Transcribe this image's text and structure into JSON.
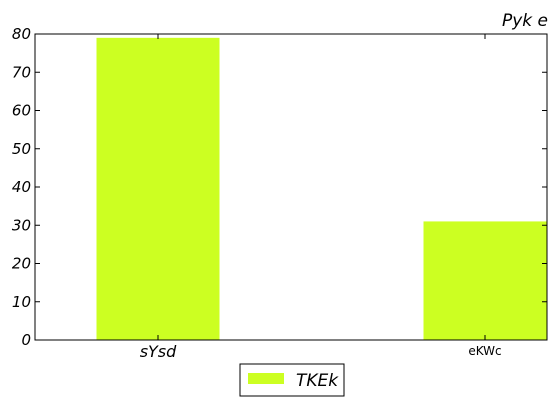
{
  "chart_data": {
    "type": "bar",
    "title": "Pyk  e",
    "xlabel": "",
    "ylabel": "",
    "categories": [
      "sYsd",
      "eKWc"
    ],
    "series": [
      {
        "name": "TKEk",
        "values": [
          79,
          31
        ],
        "color": "#ccff22"
      }
    ],
    "ylim": [
      0,
      80
    ],
    "yticks": [
      0,
      10,
      20,
      30,
      40,
      50,
      60,
      70,
      80
    ],
    "grid": false,
    "legend_position": "bottom-center"
  }
}
